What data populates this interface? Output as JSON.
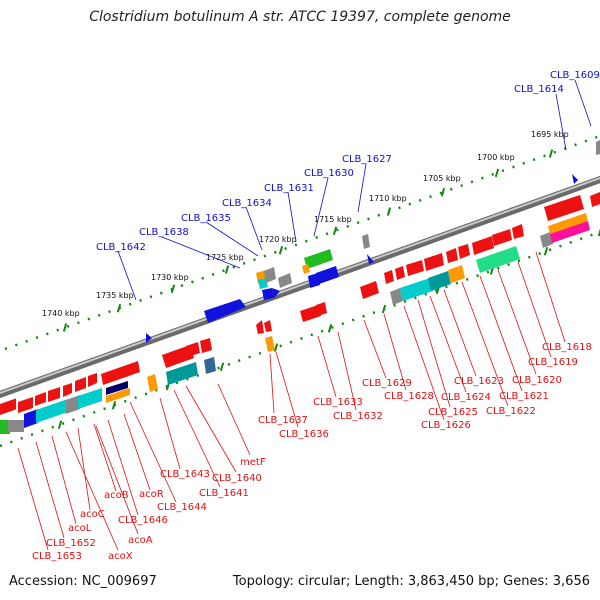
{
  "title": "Clostridium botulinum A str. ATCC 19397, complete genome",
  "footer": {
    "accession": "Accession: NC_009697",
    "topology": "Topology: circular; Length: 3,863,450 bp; Genes: 3,656"
  },
  "colors": {
    "backbone": "#8a8a8a",
    "tick": "#118811",
    "forward_label": "#1010c8",
    "reverse_label": "#e01010",
    "feature_red": "#ee1111",
    "feature_blue": "#1111dd",
    "feature_green": "#22bb22",
    "feature_cyan": "#00cccc",
    "feature_orange": "#ff9900",
    "feature_gray": "#888888",
    "feature_navy": "#000066",
    "feature_teal": "#009999",
    "feature_spring": "#22dd88",
    "feature_magenta": "#ff1199"
  },
  "scale_labels": [
    "1740 kbp",
    "1735 kbp",
    "1730 kbp",
    "1725 kbp",
    "1720 kbp",
    "1715 kbp",
    "1710 kbp",
    "1705 kbp",
    "1700 kbp",
    "1695 kbp"
  ],
  "forward_labels": [
    "CLB_1609",
    "CLB_1614",
    "CLB_1627",
    "CLB_1630",
    "CLB_1631",
    "CLB_1634",
    "CLB_1635",
    "CLB_1638",
    "CLB_1642"
  ],
  "reverse_labels": [
    "CLB_1618",
    "CLB_1619",
    "CLB_1620",
    "CLB_1621",
    "CLB_1622",
    "CLB_1623",
    "CLB_1624",
    "CLB_1625",
    "CLB_1626",
    "CLB_1628",
    "CLB_1629",
    "CLB_1632",
    "CLB_1633",
    "CLB_1636",
    "CLB_1637",
    "metF",
    "CLB_1640",
    "CLB_1641",
    "CLB_1643",
    "CLB_1644",
    "acoR",
    "CLB_1646",
    "acoB",
    "acoA",
    "acoC",
    "acoX",
    "acoL",
    "CLB_1652",
    "CLB_1653"
  ]
}
